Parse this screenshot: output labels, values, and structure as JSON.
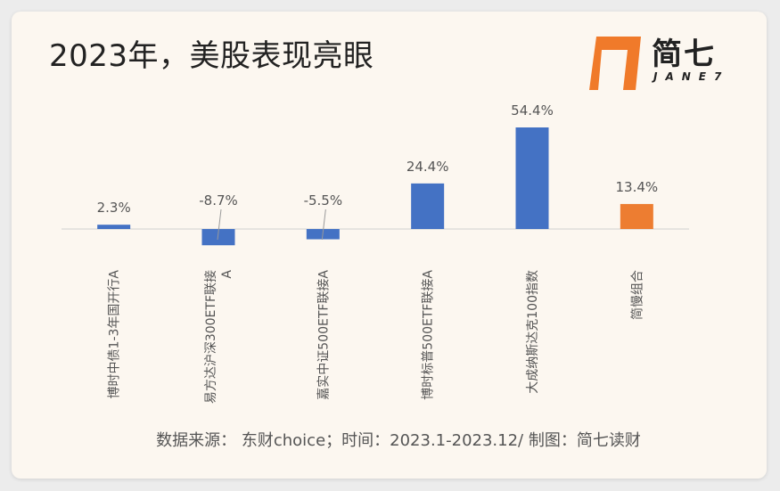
{
  "title": "2023年，美股表现亮眼",
  "logo": {
    "text": "简七",
    "sub": "JANE7",
    "accent": "#f07a2a"
  },
  "source": "数据来源： 东财choice；时间：2023.1-2023.12/ 制图：简七读财",
  "chart_data": {
    "type": "bar",
    "categories": [
      "博时中债1-3年国开行A",
      "易方达沪深300ETF联接A",
      "嘉实中证500ETF联接A",
      "博时标普500ETF联接A",
      "大成纳斯达克100指数",
      "简慢组合"
    ],
    "values": [
      2.3,
      -8.7,
      -5.5,
      24.4,
      54.4,
      13.4
    ],
    "data_labels": [
      "2.3%",
      "-8.7%",
      "-5.5%",
      "24.4%",
      "54.4%",
      "13.4%"
    ],
    "colors": [
      "#4472c4",
      "#4472c4",
      "#4472c4",
      "#4472c4",
      "#4472c4",
      "#ed7d31"
    ],
    "unit": "%"
  }
}
